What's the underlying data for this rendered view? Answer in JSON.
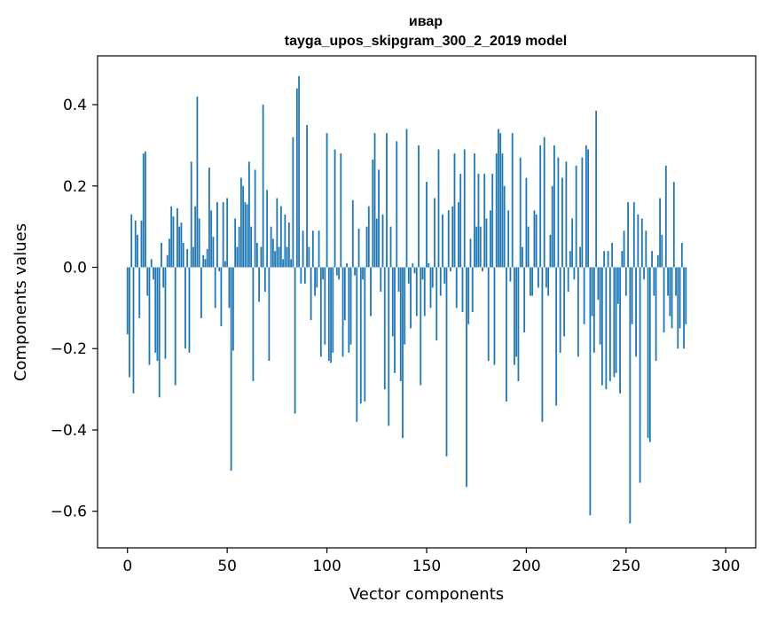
{
  "chart_data": {
    "type": "bar",
    "title": "ивар",
    "subtitle": "tayga_upos_skipgram_300_2_2019 model",
    "xlabel": "Vector components",
    "ylabel": "Components values",
    "xlim": [
      -15,
      315
    ],
    "ylim": [
      -0.69,
      0.52
    ],
    "xticks": [
      0,
      50,
      100,
      150,
      200,
      250,
      300
    ],
    "xtick_labels": [
      "0",
      "50",
      "100",
      "150",
      "200",
      "250",
      "300"
    ],
    "yticks": [
      -0.6,
      -0.4,
      -0.2,
      0.0,
      0.2,
      0.4
    ],
    "ytick_labels": [
      "−0.6",
      "−0.4",
      "−0.2",
      "0.0",
      "0.2",
      "0.4"
    ],
    "grid": false,
    "bar_color": "#1f77b4",
    "x_start": 0,
    "values": [
      -0.165,
      -0.27,
      0.13,
      -0.31,
      0.115,
      0.08,
      -0.125,
      0.115,
      0.28,
      0.285,
      -0.07,
      -0.24,
      0.02,
      -0.03,
      -0.21,
      -0.23,
      -0.32,
      0.06,
      -0.05,
      -0.225,
      0.03,
      0.07,
      0.15,
      0.125,
      -0.29,
      0.145,
      0.1,
      0.11,
      0.06,
      -0.2,
      0.045,
      -0.21,
      0.26,
      0.05,
      0.15,
      0.42,
      0.12,
      -0.125,
      0.03,
      0.02,
      0.045,
      0.245,
      0.14,
      0.075,
      -0.1,
      0.16,
      -0.01,
      -0.145,
      0.16,
      0.015,
      0.17,
      -0.1,
      -0.5,
      -0.205,
      0.12,
      0.05,
      0.1,
      0.22,
      0.2,
      0.16,
      0.155,
      0.26,
      0.1,
      -0.28,
      0.24,
      0.06,
      -0.085,
      0.05,
      0.4,
      -0.06,
      0.19,
      -0.23,
      0.1,
      0.07,
      0.04,
      0.17,
      0.05,
      0.15,
      0.02,
      0.13,
      0.05,
      0.11,
      0.02,
      0.32,
      -0.36,
      0.44,
      0.47,
      -0.04,
      0.09,
      -0.04,
      0.35,
      0.05,
      -0.13,
      0.09,
      -0.07,
      -0.05,
      0.09,
      -0.22,
      -0.03,
      -0.19,
      0.33,
      -0.23,
      -0.235,
      -0.21,
      0.29,
      -0.02,
      -0.03,
      0.28,
      -0.22,
      -0.13,
      0.01,
      -0.21,
      -0.19,
      0.165,
      -0.02,
      -0.38,
      0.095,
      -0.335,
      -0.03,
      -0.33,
      0.1,
      0.15,
      -0.12,
      0.265,
      0.33,
      0.12,
      0.24,
      -0.06,
      0.13,
      -0.3,
      0.33,
      -0.39,
      0.1,
      -0.17,
      -0.26,
      0.31,
      -0.06,
      -0.28,
      -0.42,
      -0.19,
      0.34,
      -0.04,
      -0.15,
      0.01,
      -0.015,
      -0.12,
      0.3,
      -0.29,
      -0.03,
      -0.12,
      0.21,
      0.01,
      -0.1,
      -0.05,
      0.17,
      -0.18,
      0.29,
      -0.07,
      0.13,
      -0.04,
      -0.465,
      0.14,
      -0.01,
      0.15,
      0.28,
      -0.1,
      0.16,
      0.23,
      -0.11,
      0.29,
      -0.54,
      -0.14,
      0.07,
      -0.11,
      0.28,
      0.1,
      0.23,
      0.1,
      -0.01,
      0.23,
      0.12,
      -0.23,
      0.14,
      0.23,
      -0.24,
      0.28,
      0.34,
      0.33,
      0.28,
      0.2,
      -0.33,
      0.14,
      -0.035,
      0.33,
      -0.24,
      -0.22,
      -0.28,
      0.27,
      0.05,
      -0.16,
      0.22,
      0.1,
      -0.07,
      -0.07,
      0.14,
      0.13,
      -0.05,
      0.3,
      -0.38,
      0.32,
      -0.05,
      -0.07,
      0.08,
      0.2,
      0.3,
      -0.34,
      0.27,
      -0.21,
      0.22,
      -0.17,
      0.26,
      -0.06,
      0.04,
      0.12,
      -0.03,
      0.25,
      -0.22,
      0.05,
      0.27,
      -0.14,
      0.3,
      0.29,
      -0.61,
      -0.12,
      -0.21,
      0.385,
      -0.08,
      -0.19,
      -0.29,
      0.04,
      -0.3,
      0.04,
      -0.28,
      0.06,
      -0.27,
      -0.26,
      -0.09,
      -0.31,
      0.04,
      0.09,
      -0.07,
      0.16,
      -0.63,
      -0.14,
      0.16,
      -0.22,
      0.13,
      -0.53,
      0.12,
      -0.03,
      0.09,
      -0.42,
      -0.43,
      0.04,
      -0.07,
      -0.23,
      0.03,
      0.17,
      0.08,
      -0.16,
      0.25,
      -0.07,
      -0.12,
      -0.15,
      0.21,
      -0.07,
      -0.2,
      -0.15,
      0.06,
      -0.2,
      -0.14
    ]
  }
}
